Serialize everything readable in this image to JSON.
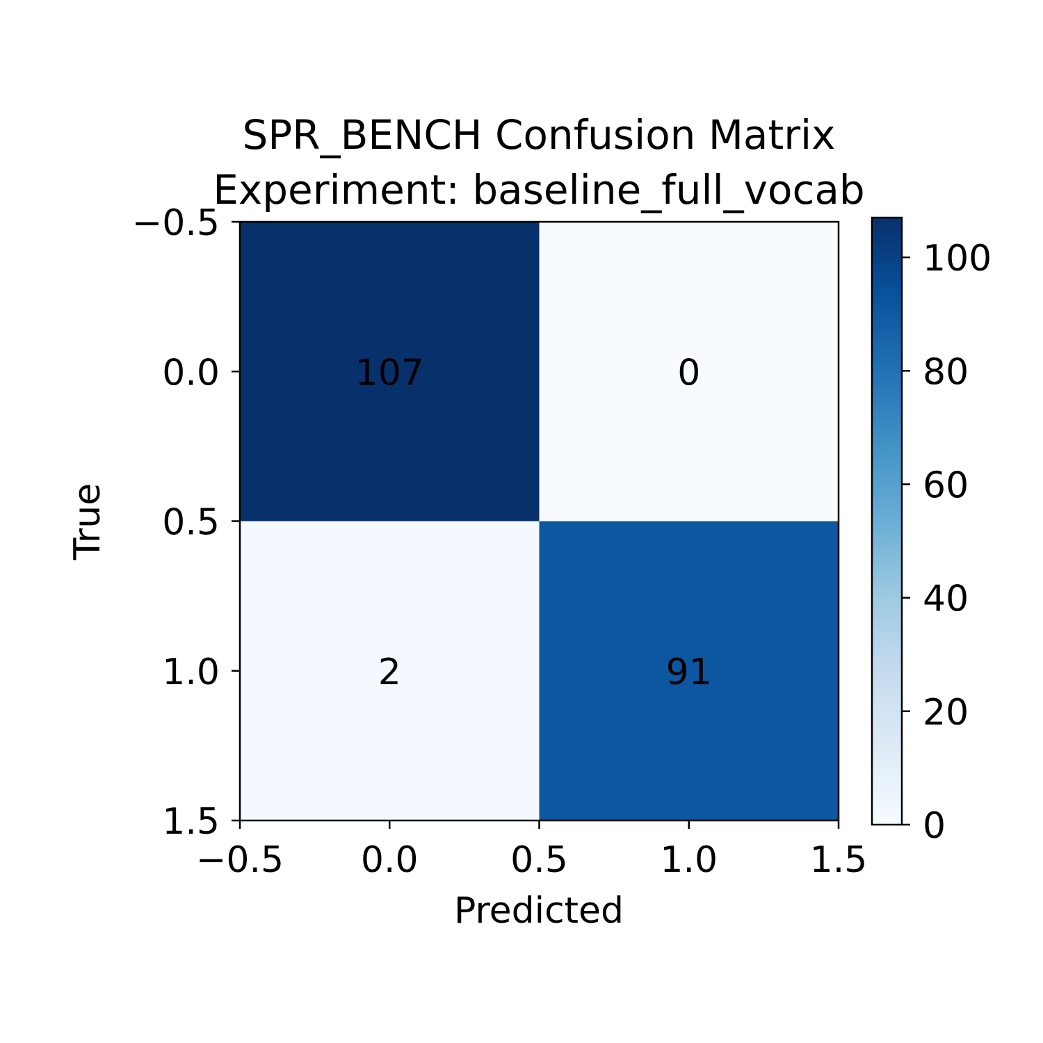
{
  "chart_data": {
    "type": "heatmap",
    "title": "SPR_BENCH Confusion Matrix",
    "subtitle": "Experiment: baseline_full_vocab",
    "xlabel": "Predicted",
    "ylabel": "True",
    "xlim": [
      -0.5,
      1.5
    ],
    "ylim": [
      1.5,
      -0.5
    ],
    "xticks": [
      "−0.5",
      "0.0",
      "0.5",
      "1.0",
      "1.5"
    ],
    "yticks": [
      "−0.5",
      "0.0",
      "0.5",
      "1.0",
      "1.5"
    ],
    "matrix": [
      [
        107,
        0
      ],
      [
        2,
        91
      ]
    ],
    "colormap": "Blues",
    "colorbar": {
      "min": 0,
      "max": 107,
      "ticks": [
        "0",
        "20",
        "40",
        "60",
        "80",
        "100"
      ]
    }
  }
}
